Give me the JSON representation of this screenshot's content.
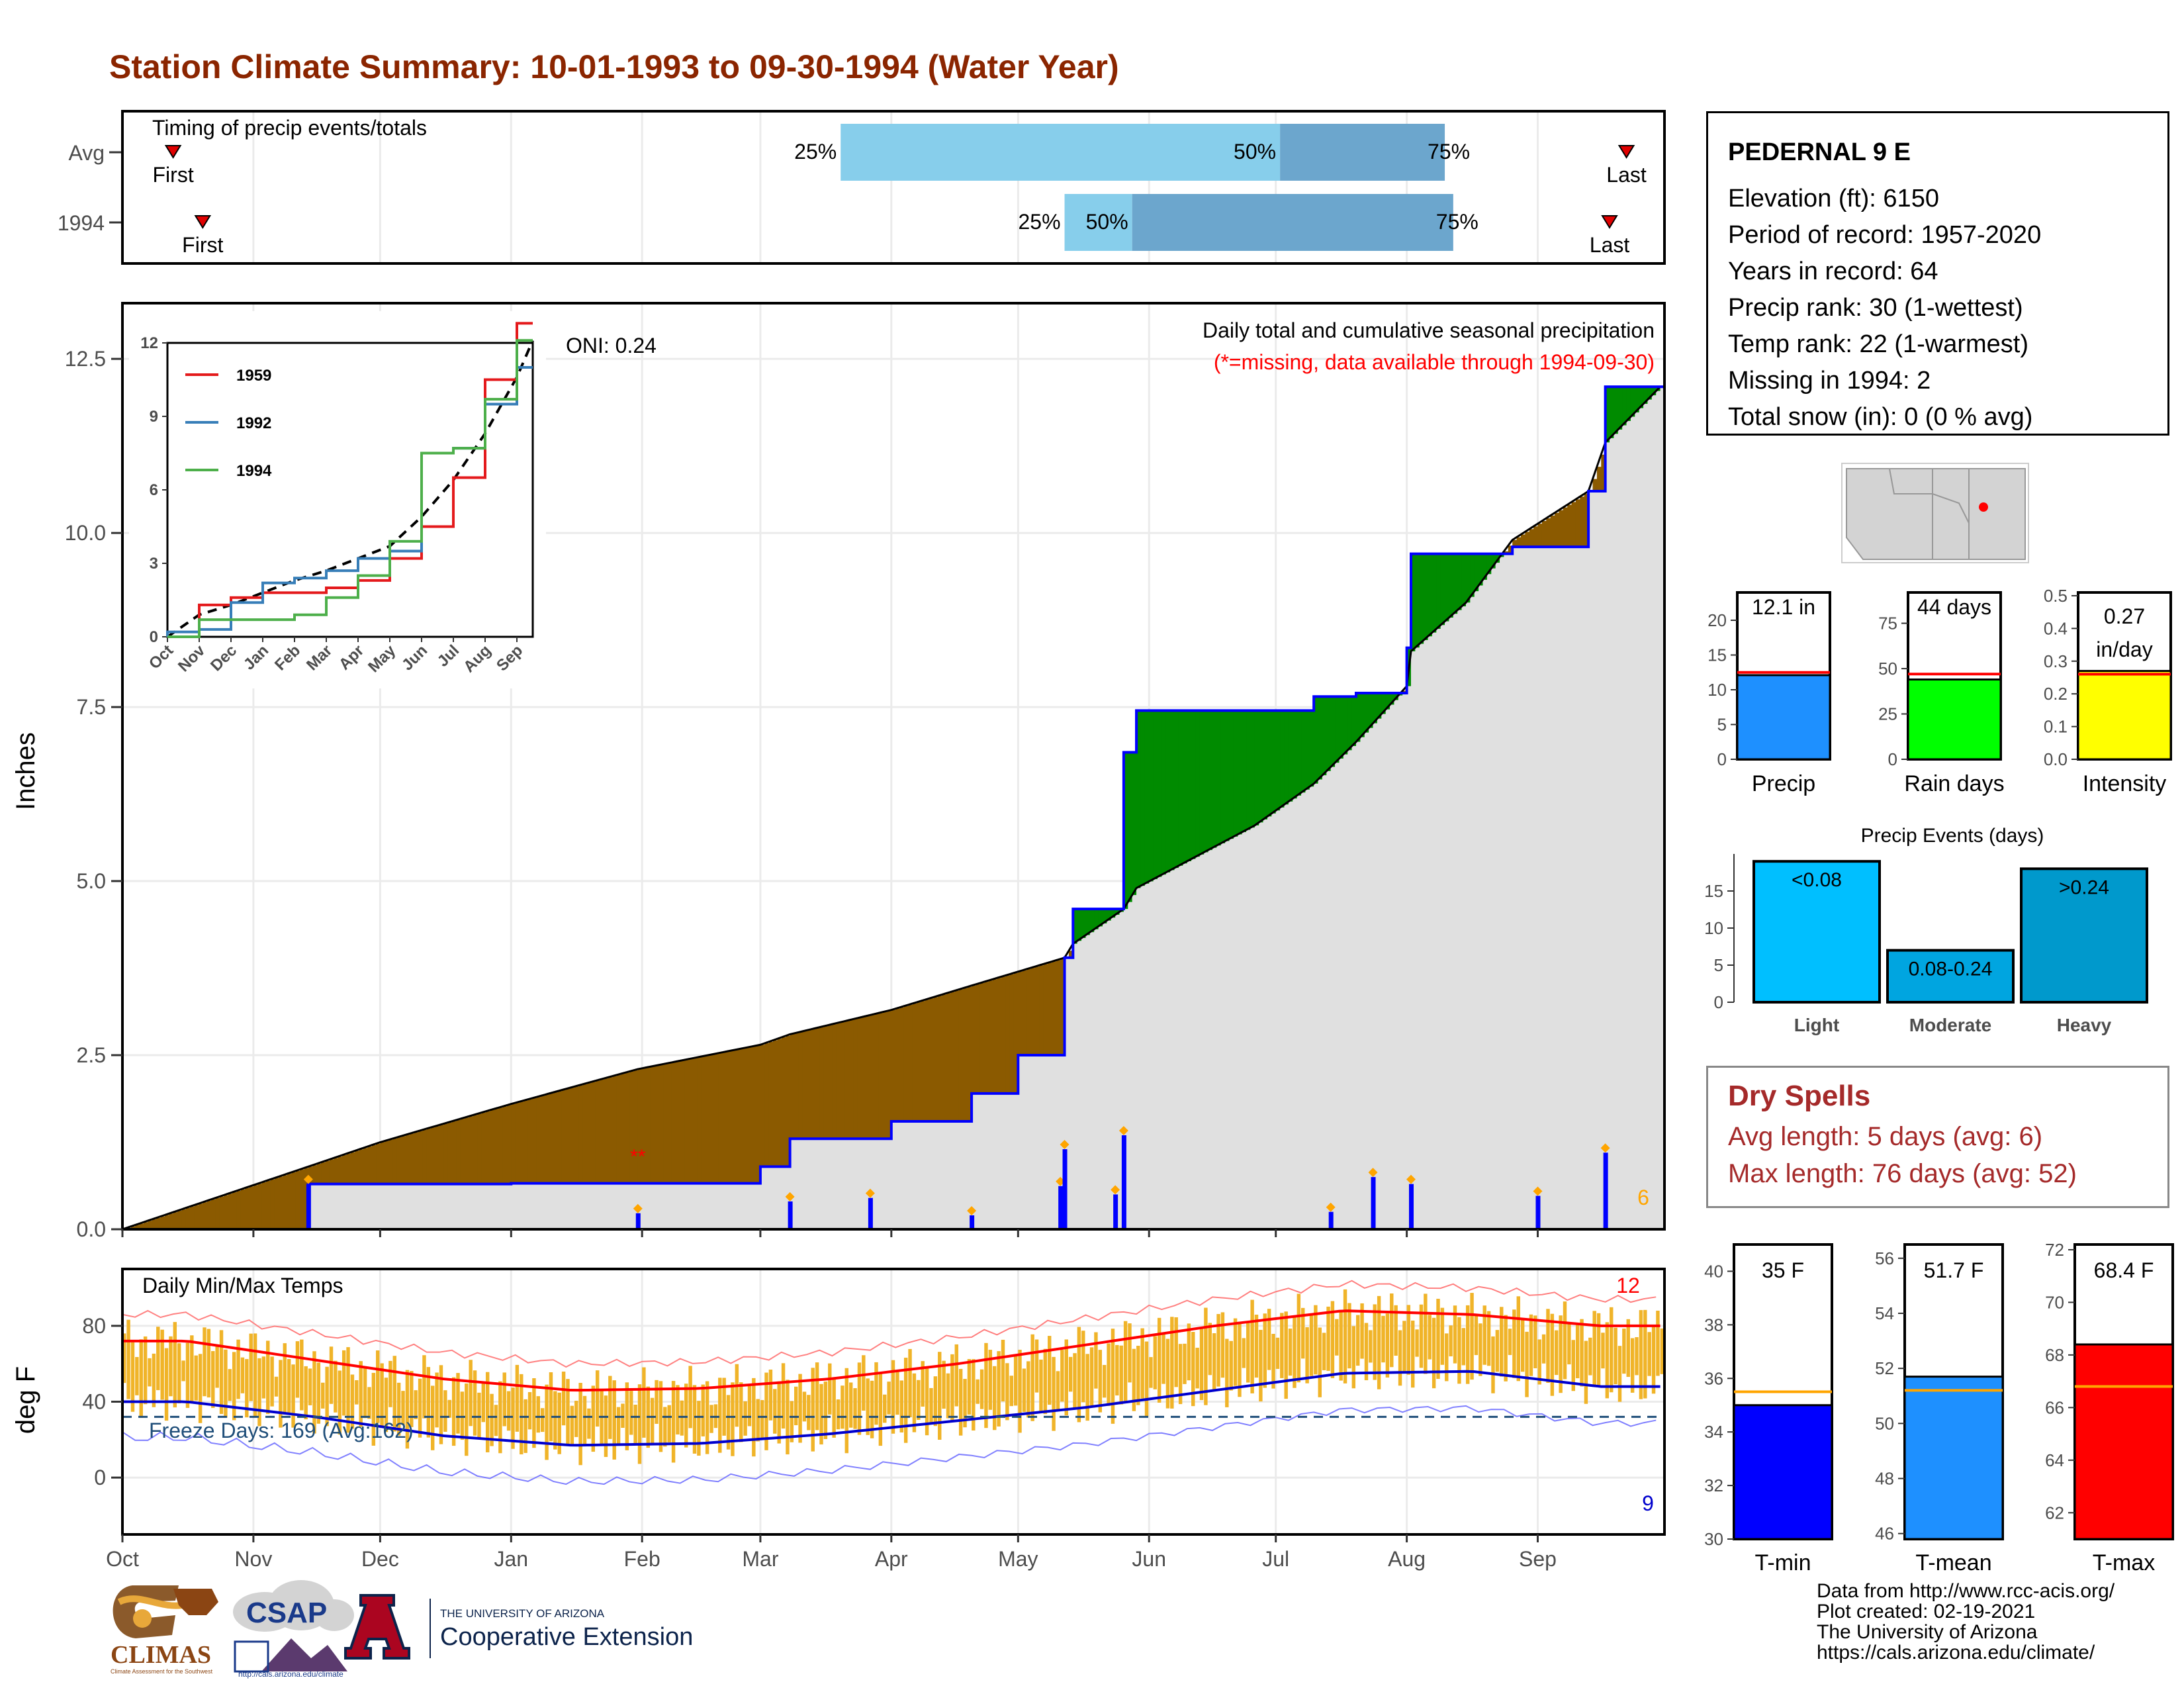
{
  "title": "Station Climate Summary: 10-01-1993 to 09-30-1994 (Water Year)",
  "colors": {
    "title": "#8b2500",
    "deficit": "#8b5a00",
    "surplus": "#008b00",
    "cumulative_line": "#0000ff",
    "avg_fill": "#e0e0e0",
    "quartile_light": "#87ceeb",
    "quartile_dark": "#6ca6cd",
    "temp_bar": "#f0b429",
    "tmax_line": "#ff0000",
    "tmin_line": "#0000cd",
    "dry_spells": "#a52a2a"
  },
  "timing": {
    "label": "Timing of precip events/totals",
    "rows": [
      "Avg",
      "1994"
    ],
    "first_label": "First",
    "last_label": "Last",
    "pct_labels": [
      "25%",
      "50%",
      "75%"
    ]
  },
  "precip_panel": {
    "y_label": "Inches",
    "y_ticks": [
      "0.0",
      "2.5",
      "5.0",
      "7.5",
      "10.0",
      "12.5"
    ],
    "annotation_title": "Daily total and cumulative seasonal precipitation",
    "annotation_missing": "(*=missing, data available through 1994-09-30)",
    "oni": "ONI: 0.24",
    "count_right": "6"
  },
  "inset": {
    "y_ticks": [
      "0",
      "3",
      "6",
      "9",
      "12"
    ],
    "x_ticks": [
      "Oct",
      "Nov",
      "Dec",
      "Jan",
      "Feb",
      "Mar",
      "Apr",
      "May",
      "Jun",
      "Jul",
      "Aug",
      "Sep"
    ],
    "legend": [
      "1959",
      "1992",
      "1994"
    ]
  },
  "temp_panel": {
    "label": "Daily Min/Max Temps",
    "y_label": "deg F",
    "y_ticks": [
      "0",
      "40",
      "80"
    ],
    "freeze": "Freeze Days: 169 (Avg:162)",
    "count_max": "12",
    "count_min": "9"
  },
  "x_axis_months": [
    "Oct",
    "Nov",
    "Dec",
    "Jan",
    "Feb",
    "Mar",
    "Apr",
    "May",
    "Jun",
    "Jul",
    "Aug",
    "Sep"
  ],
  "station": {
    "name": "PEDERNAL 9 E",
    "lines": [
      "Elevation (ft): 6150",
      "Period of record: 1957-2020",
      "Years in record: 64",
      "Precip rank: 30 (1-wettest)",
      "Temp rank: 22 (1-warmest)",
      "Missing in 1994: 2",
      "Total snow (in): 0 (0 % avg)"
    ]
  },
  "dry_spells": {
    "title": "Dry Spells",
    "avg": "Avg length: 5 days (avg: 6)",
    "max": "Max length: 76 days (avg: 52)"
  },
  "small_bars": {
    "precip": {
      "label": "Precip",
      "value_label": "12.1 in",
      "value": 12.1,
      "avg": 12.5,
      "ymax": 24,
      "ticks": [
        "0",
        "5",
        "10",
        "15",
        "20"
      ],
      "color": "#1e90ff"
    },
    "rain_days": {
      "label": "Rain days",
      "value_label": "44 days",
      "value": 44,
      "avg": 47,
      "ymax": 92,
      "ticks": [
        "0",
        "25",
        "50",
        "75"
      ],
      "color": "#00ff00"
    },
    "intensity": {
      "label": "Intensity",
      "value_label": "0.27 in/day",
      "value_line1": "0.27",
      "value_line2": "in/day",
      "value": 0.27,
      "avg": 0.26,
      "ymax": 0.51,
      "ticks": [
        "0.0",
        "0.1",
        "0.2",
        "0.3",
        "0.4",
        "0.5"
      ],
      "color": "#ffff00"
    }
  },
  "precip_events": {
    "title": "Precip Events (days)",
    "categories": [
      "Light",
      "Moderate",
      "Heavy"
    ],
    "labels": [
      "<0.08",
      "0.08-0.24",
      ">0.24"
    ],
    "values": [
      19,
      7,
      18
    ],
    "ticks": [
      "0",
      "5",
      "10",
      "15"
    ],
    "colors": [
      "#00bfff",
      "#00a5e0",
      "#0099cc"
    ]
  },
  "temp_bars": {
    "tmin": {
      "label": "T-min",
      "value_label": "35 F",
      "value": 35,
      "avg": 35.5,
      "ylim": [
        30,
        41
      ],
      "ticks": [
        "30",
        "32",
        "34",
        "36",
        "38",
        "40"
      ],
      "color": "#0000ff"
    },
    "tmean": {
      "label": "T-mean",
      "value_label": "51.7 F",
      "value": 51.7,
      "avg": 51.2,
      "ylim": [
        45.8,
        56.5
      ],
      "ticks": [
        "46",
        "48",
        "50",
        "52",
        "54",
        "56"
      ],
      "color": "#1e90ff"
    },
    "tmax": {
      "label": "T-max",
      "value_label": "68.4 F",
      "value": 68.4,
      "avg": 66.8,
      "ylim": [
        61,
        72.2
      ],
      "ticks": [
        "62",
        "64",
        "66",
        "68",
        "70",
        "72"
      ],
      "color": "#ff0000"
    }
  },
  "credits": [
    "Data from http://www.rcc-acis.org/",
    "Plot created: 02-19-2021",
    "The University of Arizona",
    "https://cals.arizona.edu/climate/"
  ],
  "logos": {
    "climas": "CLIMAS",
    "climas_sub": "Climate Assessment for the Southwest",
    "csap": "CSAP",
    "csap_url": "http://cals.arizona.edu/climate",
    "ua_line1": "THE UNIVERSITY OF ARIZONA",
    "ua_line2": "Cooperative Extension"
  },
  "chart_data": {
    "type": "area",
    "title": "Station Climate Summary: 10-01-1993 to 09-30-1994 (Water Year)",
    "ylabel": "Inches",
    "ylim": [
      0,
      13.3
    ],
    "x": [
      "Oct 1",
      "Nov 14",
      "Dec 1",
      "Jan 1",
      "Jan 31",
      "Mar 1",
      "Mar 8",
      "Apr 1",
      "Apr 20",
      "May 1",
      "May 12",
      "May 14",
      "May 26",
      "May 29",
      "Jun 26",
      "Jul 10",
      "Jul 20",
      "Aug 1",
      "Aug 2",
      "Aug 15",
      "Aug 26",
      "Sep 13",
      "Sep 17",
      "Sep 30"
    ],
    "series": [
      {
        "name": "1994 cumulative",
        "values": [
          0.0,
          0.65,
          0.65,
          0.66,
          0.66,
          0.9,
          1.3,
          1.55,
          1.95,
          2.5,
          3.9,
          4.6,
          6.85,
          7.45,
          7.45,
          7.65,
          7.7,
          8.35,
          9.7,
          9.7,
          9.8,
          10.6,
          12.1,
          12.1
        ]
      },
      {
        "name": "Average cumulative",
        "values": [
          0.0,
          0.9,
          1.25,
          1.8,
          2.3,
          2.65,
          2.8,
          3.15,
          3.5,
          3.7,
          3.9,
          4.1,
          4.6,
          4.9,
          5.8,
          6.4,
          7.0,
          7.8,
          8.3,
          9.0,
          9.9,
          10.6,
          11.3,
          12.1
        ]
      }
    ],
    "inset_series": [
      {
        "name": "1959",
        "x": [
          "Oct",
          "Nov",
          "Dec",
          "Jan",
          "Feb",
          "Mar",
          "Apr",
          "May",
          "Jun",
          "Jul",
          "Aug",
          "Sep"
        ],
        "values": [
          0,
          1.3,
          1.6,
          1.8,
          1.8,
          2.0,
          2.3,
          3.2,
          4.5,
          6.5,
          10.5,
          12.8
        ]
      },
      {
        "name": "1992",
        "x": [
          "Oct",
          "Nov",
          "Dec",
          "Jan",
          "Feb",
          "Mar",
          "Apr",
          "May",
          "Jun",
          "Jul",
          "Aug",
          "Sep"
        ],
        "values": [
          0.2,
          0.3,
          1.4,
          2.2,
          2.4,
          2.7,
          3.2,
          3.5,
          7.5,
          7.7,
          9.5,
          11.0
        ]
      },
      {
        "name": "1994",
        "x": [
          "Oct",
          "Nov",
          "Dec",
          "Jan",
          "Feb",
          "Mar",
          "Apr",
          "May",
          "Jun",
          "Jul",
          "Aug",
          "Sep"
        ],
        "values": [
          0,
          0.7,
          0.7,
          0.7,
          0.9,
          1.6,
          2.5,
          3.9,
          7.5,
          7.7,
          9.7,
          12.1
        ]
      }
    ],
    "daily_precip": [
      {
        "x": "Nov 14",
        "y": 0.65
      },
      {
        "x": "Jan 31",
        "y": 0.23
      },
      {
        "x": "Mar 8",
        "y": 0.4
      },
      {
        "x": "Mar 27",
        "y": 0.45
      },
      {
        "x": "Apr 20",
        "y": 0.2
      },
      {
        "x": "May 11",
        "y": 0.62
      },
      {
        "x": "May 12",
        "y": 1.15
      },
      {
        "x": "May 24",
        "y": 0.5
      },
      {
        "x": "May 26",
        "y": 1.35
      },
      {
        "x": "Jul 14",
        "y": 0.25
      },
      {
        "x": "Jul 24",
        "y": 0.75
      },
      {
        "x": "Aug 2",
        "y": 0.65
      },
      {
        "x": "Sep 1",
        "y": 0.48
      },
      {
        "x": "Sep 17",
        "y": 1.1
      }
    ],
    "temperature": {
      "ylabel": "deg F",
      "ylim": [
        -30,
        110
      ],
      "x": [
        "Oct",
        "Nov",
        "Dec",
        "Jan",
        "Feb",
        "Mar",
        "Apr",
        "May",
        "Jun",
        "Jul",
        "Aug",
        "Sep"
      ],
      "avg_max": [
        72,
        62,
        52,
        46,
        47,
        52,
        60,
        70,
        80,
        88,
        86,
        80
      ],
      "avg_min": [
        40,
        32,
        22,
        17,
        18,
        23,
        30,
        37,
        46,
        55,
        56,
        48
      ],
      "freeze_line": 32
    }
  }
}
